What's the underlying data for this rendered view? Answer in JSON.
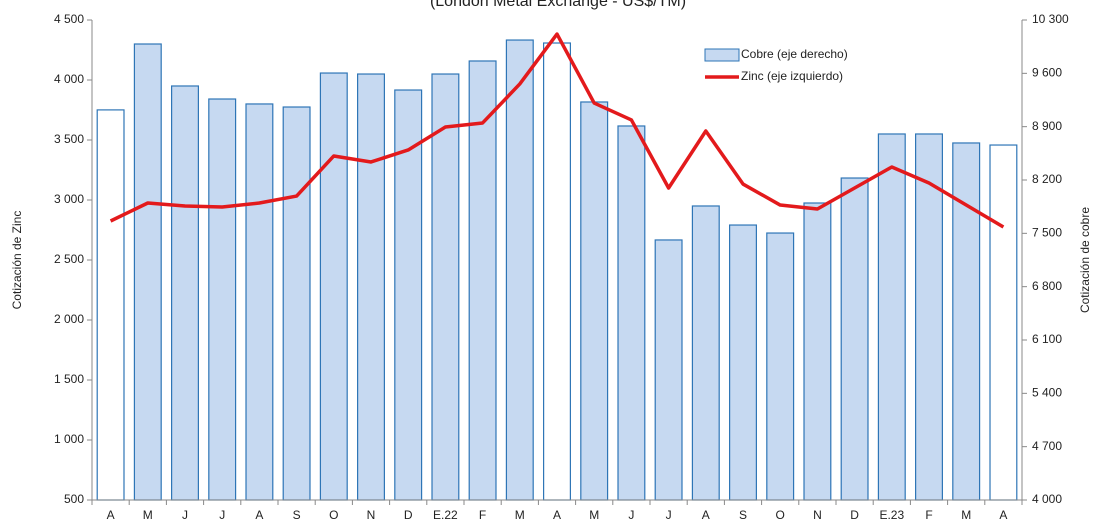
{
  "chart_data": {
    "type": "bar_line",
    "title": "(London Metal Exchange - US$/TM)",
    "y_label": "Cotización de Zinc",
    "y2_label": "Cotización de cobre",
    "categories": [
      "A",
      "M",
      "J",
      "J",
      "A",
      "S",
      "O",
      "N",
      "D",
      "E.22",
      "F",
      "M",
      "A",
      "M",
      "J",
      "J",
      "A",
      "S",
      "O",
      "N",
      "D",
      "E.23",
      "F",
      "M",
      "A"
    ],
    "ylim": [
      500,
      4500
    ],
    "yticks": [
      500,
      {
        "value": 1000,
        "label": "1 000"
      },
      {
        "value": 1500,
        "label": "1 500"
      },
      {
        "value": 2000,
        "label": "2 000"
      },
      {
        "value": 2500,
        "label": "2 500"
      },
      {
        "value": 3000,
        "label": "3 000"
      },
      {
        "value": 3500,
        "label": "3 500"
      },
      {
        "value": 4000,
        "label": "4 000"
      },
      {
        "value": 4500,
        "label": "4 500"
      }
    ],
    "y2lim": [
      4000,
      10300
    ],
    "y2ticks": [
      {
        "value": 4000,
        "label": "4 000"
      },
      {
        "value": 4700,
        "label": "4 700"
      },
      {
        "value": 5400,
        "label": "5 400"
      },
      {
        "value": 6100,
        "label": "6 100"
      },
      {
        "value": 6800,
        "label": "6 800"
      },
      {
        "value": 7500,
        "label": "7 500"
      },
      {
        "value": 8200,
        "label": "8 200"
      },
      {
        "value": 8900,
        "label": "8 900"
      },
      {
        "value": 9600,
        "label": "9 600"
      },
      {
        "value": 10300,
        "label": "10 300"
      }
    ],
    "legend": "upper right",
    "series": [
      {
        "name": "Cobre (eje derecho)",
        "type": "bar",
        "axis": "y2",
        "color": "#c6d9f1",
        "edge_color": "#2e75b6",
        "bar_colors": [
          "#ffffff",
          "#c6d9f1",
          "#c6d9f1",
          "#c6d9f1",
          "#c6d9f1",
          "#c6d9f1",
          "#c6d9f1",
          "#c6d9f1",
          "#c6d9f1",
          "#c6d9f1",
          "#c6d9f1",
          "#c6d9f1",
          "#ffffff",
          "#c6d9f1",
          "#c6d9f1",
          "#c6d9f1",
          "#c6d9f1",
          "#c6d9f1",
          "#c6d9f1",
          "#c6d9f1",
          "#c6d9f1",
          "#c6d9f1",
          "#c6d9f1",
          "#c6d9f1",
          "#ffffff"
        ],
        "values": [
          9120,
          9985,
          9434,
          9263,
          9198,
          9158,
          9604,
          9591,
          9381,
          9591,
          9762,
          10037,
          9998,
          9224,
          8909,
          7413,
          7859,
          7609,
          7504,
          7898,
          8226,
          8804,
          8804,
          8686,
          8659
        ]
      },
      {
        "name": "Zinc (eje izquierdo)",
        "type": "line",
        "color": "#e31a1c",
        "values": [
          2825,
          2975,
          2950,
          2942,
          2975,
          3033,
          3367,
          3317,
          3417,
          3608,
          3642,
          3967,
          4383,
          3808,
          3667,
          3100,
          3575,
          3133,
          2958,
          2925,
          3100,
          3275,
          3142,
          2958,
          2775
        ]
      }
    ]
  }
}
